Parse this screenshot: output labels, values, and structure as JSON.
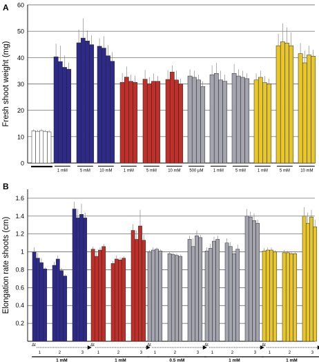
{
  "chart_data": [
    {
      "type": "bar",
      "panel_label": "A",
      "ylabel": "Fresh shoot weight (mg)",
      "ylim": [
        0,
        60
      ],
      "yticks": [
        0,
        10,
        20,
        30,
        40,
        50,
        60
      ],
      "grid": true,
      "groups": [
        {
          "label": "",
          "color": "#ffffff",
          "values": [
            12.2,
            12.0,
            12.3,
            12.0,
            11.8
          ],
          "errors": [
            0.6,
            0.6,
            0.6,
            0.6,
            0.6
          ]
        },
        {
          "label": "1 mM",
          "color": "#2e2a8a",
          "values": [
            40.3,
            38.5,
            36.3,
            35.6
          ],
          "errors": [
            5.0,
            6.0,
            4.5,
            2.5
          ]
        },
        {
          "label": "5 mM",
          "color": "#2e2a8a",
          "values": [
            45.6,
            47.4,
            46.3,
            44.9
          ],
          "errors": [
            5.0,
            7.5,
            4.0,
            3.5
          ]
        },
        {
          "label": "10 mM",
          "color": "#2e2a8a",
          "values": [
            44.3,
            43.6,
            40.7,
            38.6
          ],
          "errors": [
            3.0,
            4.5,
            4.0,
            3.5
          ]
        },
        {
          "label": "1 mM",
          "color": "#c0302a",
          "values": [
            30.6,
            32.6,
            31.0,
            30.6
          ],
          "errors": [
            3.5,
            4.0,
            2.5,
            2.5
          ]
        },
        {
          "label": "5 mM",
          "color": "#c0302a",
          "values": [
            31.8,
            30.1,
            31.0,
            31.0
          ],
          "errors": [
            3.5,
            2.5,
            3.0,
            2.0
          ]
        },
        {
          "label": "10 mM",
          "color": "#c0302a",
          "values": [
            31.7,
            34.5,
            31.5,
            30.0
          ],
          "errors": [
            3.5,
            2.5,
            3.5,
            2.0
          ]
        },
        {
          "label": "500 µM",
          "color": "#a4a4ae",
          "values": [
            33.0,
            32.5,
            31.5,
            29.0
          ],
          "errors": [
            2.5,
            2.5,
            2.0,
            2.0
          ]
        },
        {
          "label": "1 mM",
          "color": "#a4a4ae",
          "values": [
            33.5,
            34.0,
            31.5,
            31.0
          ],
          "errors": [
            3.5,
            4.0,
            3.5,
            2.5
          ]
        },
        {
          "label": "5 mM",
          "color": "#a4a4ae",
          "values": [
            34.0,
            33.0,
            32.5,
            32.0
          ],
          "errors": [
            3.5,
            2.5,
            2.5,
            2.0
          ]
        },
        {
          "label": "1 mM",
          "color": "#e6c62a",
          "values": [
            31.5,
            32.5,
            30.5,
            30.0
          ],
          "errors": [
            2.5,
            2.5,
            2.5,
            2.0
          ]
        },
        {
          "label": "5 mM",
          "color": "#e6c62a",
          "values": [
            44.5,
            46.0,
            45.5,
            44.5
          ],
          "errors": [
            4.5,
            7.0,
            6.0,
            5.0
          ]
        },
        {
          "label": "10 mM",
          "color": "#e6c62a",
          "values": [
            41.5,
            38.0,
            41.0,
            40.5
          ],
          "errors": [
            4.0,
            4.5,
            3.5,
            2.5
          ]
        }
      ]
    },
    {
      "type": "bar",
      "panel_label": "B",
      "ylabel": "Elongation rate shoots (cm)",
      "ylim": [
        0,
        1.7
      ],
      "yticks": [
        "0",
        "0.2",
        "0.4",
        "0.6",
        "0.8",
        "1",
        "1.2",
        "1.4",
        "1.6"
      ],
      "grid": true,
      "time_axis_label": "Δt",
      "sets": [
        {
          "label": "1 mM",
          "color": "#2e2a8a",
          "subgroups": [
            {
              "label": "1",
              "values": [
                1.0,
                0.93,
                0.88,
                0.81
              ],
              "errors": [
                0.05,
                0.06,
                0.05,
                0.02
              ]
            },
            {
              "label": "2",
              "values": [
                0.85,
                0.92,
                0.79,
                0.73
              ],
              "errors": [
                0.04,
                0.04,
                0.03,
                0.02
              ]
            },
            {
              "label": "3",
              "values": [
                1.48,
                1.38,
                1.42,
                1.38
              ],
              "errors": [
                0.08,
                0.1,
                0.12,
                0.06
              ]
            }
          ]
        },
        {
          "label": "1 mM",
          "color": "#c0302a",
          "subgroups": [
            {
              "label": "1",
              "values": [
                1.03,
                0.95,
                1.02,
                1.06
              ],
              "errors": [
                0.03,
                0.06,
                0.03,
                0.03
              ]
            },
            {
              "label": "2",
              "values": [
                0.87,
                0.92,
                0.91,
                0.93
              ],
              "errors": [
                0.03,
                0.04,
                0.03,
                0.02
              ]
            },
            {
              "label": "3",
              "values": [
                1.24,
                1.14,
                1.29,
                1.13
              ],
              "errors": [
                0.07,
                0.1,
                0.18,
                0.06
              ]
            }
          ]
        },
        {
          "label": "0.5 mM",
          "color": "#a4a4ae",
          "subgroups": [
            {
              "label": "1",
              "values": [
                1.0,
                1.02,
                1.03,
                1.01
              ],
              "errors": [
                0.02,
                0.03,
                0.02,
                0.02
              ]
            },
            {
              "label": "2",
              "values": [
                0.98,
                0.97,
                0.96,
                0.95
              ],
              "errors": [
                0.02,
                0.02,
                0.02,
                0.02
              ]
            },
            {
              "label": "3",
              "values": [
                1.14,
                1.06,
                1.18,
                1.16
              ],
              "errors": [
                0.04,
                0.09,
                0.06,
                0.03
              ]
            }
          ]
        },
        {
          "label": "1 mM",
          "color": "#a4a4ae",
          "subgroups": [
            {
              "label": "1",
              "values": [
                1.01,
                1.04,
                1.12,
                1.14
              ],
              "errors": [
                0.04,
                0.05,
                0.05,
                0.04
              ]
            },
            {
              "label": "2",
              "values": [
                1.1,
                1.06,
                0.98,
                1.03
              ],
              "errors": [
                0.05,
                0.05,
                0.04,
                0.05
              ]
            },
            {
              "label": "3",
              "values": [
                1.4,
                1.39,
                1.35,
                1.32
              ],
              "errors": [
                0.08,
                0.06,
                0.08,
                0.04
              ]
            }
          ]
        },
        {
          "label": "1 mM",
          "color": "#e6c62a",
          "subgroups": [
            {
              "label": "1",
              "values": [
                1.01,
                1.02,
                1.02,
                1.0
              ],
              "errors": [
                0.03,
                0.03,
                0.03,
                0.02
              ]
            },
            {
              "label": "2",
              "values": [
                0.99,
                0.99,
                0.98,
                0.98
              ],
              "errors": [
                0.03,
                0.02,
                0.02,
                0.02
              ]
            },
            {
              "label": "3",
              "values": [
                1.4,
                1.32,
                1.39,
                1.28
              ],
              "errors": [
                0.1,
                0.12,
                0.08,
                0.08
              ]
            }
          ]
        }
      ]
    }
  ]
}
